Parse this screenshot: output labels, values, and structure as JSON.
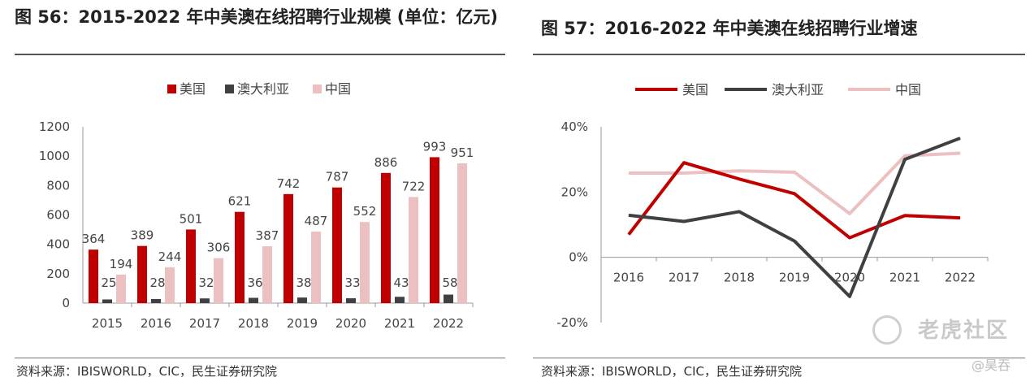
{
  "left": {
    "title": "图 56：2015-2022 年中美澳在线招聘行业规模 (单位：亿元)",
    "source": "资料来源：IBISWORLD，CIC，民生证券研究院"
  },
  "right": {
    "title": "图 57：2016-2022 年中美澳在线招聘行业增速",
    "source": "资料来源：IBISWORLD，CIC，民生证券研究院"
  },
  "watermark": {
    "text": "老虎社区",
    "icon": "tiger-community-logo-icon",
    "author": "@昊吞"
  },
  "colors": {
    "us": "#c00000",
    "au": "#404040",
    "cn": "#ecc0c0"
  },
  "chart_data": [
    {
      "type": "bar",
      "title": "2015-2022 年中美澳在线招聘行业规模 (单位：亿元)",
      "categories": [
        "2015",
        "2016",
        "2017",
        "2018",
        "2019",
        "2020",
        "2021",
        "2022"
      ],
      "series": [
        {
          "name": "美国",
          "values": [
            364,
            389,
            501,
            621,
            742,
            787,
            886,
            993
          ]
        },
        {
          "name": "澳大利亚",
          "values": [
            25,
            28,
            32,
            36,
            38,
            33,
            43,
            58
          ]
        },
        {
          "name": "中国",
          "values": [
            194,
            244,
            306,
            387,
            487,
            552,
            722,
            951
          ]
        }
      ],
      "ylim": [
        0,
        1200
      ],
      "yticks": [
        0,
        200,
        400,
        600,
        800,
        1000,
        1200
      ],
      "xlabel": "",
      "ylabel": "",
      "legend": "top-center"
    },
    {
      "type": "line",
      "title": "2016-2022 年中美澳在线招聘行业增速",
      "categories": [
        "2016",
        "2017",
        "2018",
        "2019",
        "2020",
        "2021",
        "2022"
      ],
      "series": [
        {
          "name": "美国",
          "values": [
            7,
            29,
            24,
            19.5,
            6,
            12.8,
            12.1
          ]
        },
        {
          "name": "澳大利亚",
          "values": [
            12.9,
            11,
            14,
            5,
            -12,
            30,
            36.5
          ]
        },
        {
          "name": "中国",
          "values": [
            25.8,
            25.8,
            26.5,
            26.1,
            13.4,
            31.1,
            31.9
          ]
        }
      ],
      "ylim": [
        -20,
        40
      ],
      "yticks": [
        -20,
        0,
        20,
        40
      ],
      "ytick_labels": [
        "-20%",
        "0%",
        "20%",
        "40%"
      ],
      "xlabel": "",
      "ylabel": "",
      "legend": "top-center"
    }
  ]
}
